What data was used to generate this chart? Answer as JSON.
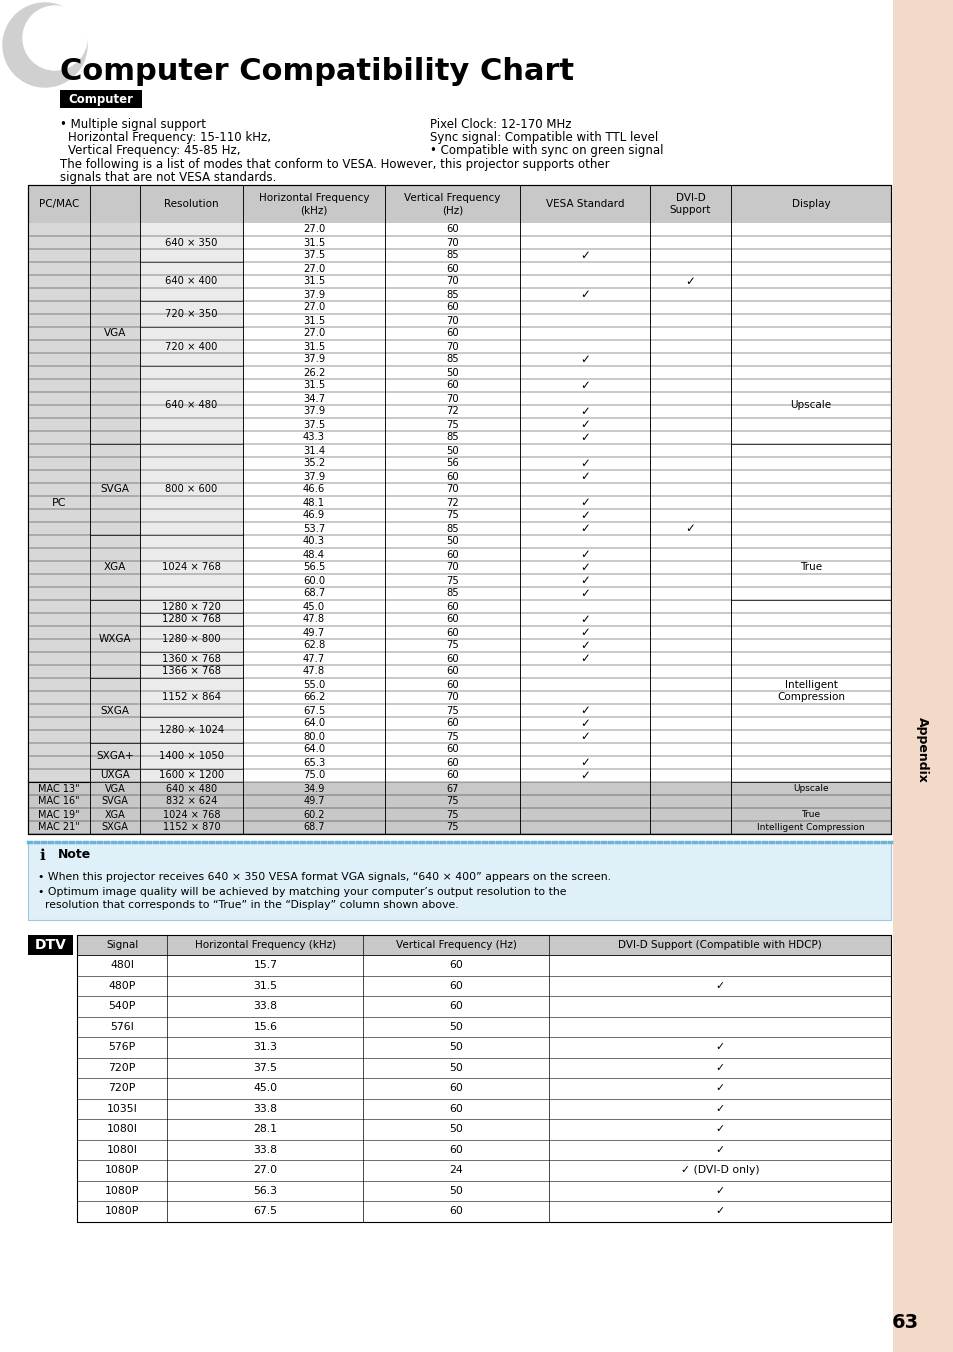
{
  "title": "Computer Compatibility Chart",
  "computer_label": "Computer",
  "bg_color": "#ffffff",
  "sidebar_color": "#f2d9c8",
  "table_header_bg": "#c8c8c8",
  "gray_cell": "#c8c8c8",
  "note_bg": "#dff0f8",
  "note_border": "#a0c8e0",
  "pc_rows": [
    [
      "640 × 350",
      "27.0",
      "60",
      "",
      ""
    ],
    [
      "640 × 350",
      "31.5",
      "70",
      "",
      ""
    ],
    [
      "640 × 350",
      "37.5",
      "85",
      "✓",
      ""
    ],
    [
      "640 × 400",
      "27.0",
      "60",
      "",
      ""
    ],
    [
      "640 × 400",
      "31.5",
      "70",
      "",
      "✓"
    ],
    [
      "640 × 400",
      "37.9",
      "85",
      "✓",
      ""
    ],
    [
      "720 × 350",
      "27.0",
      "60",
      "",
      ""
    ],
    [
      "720 × 350",
      "31.5",
      "70",
      "",
      ""
    ],
    [
      "720 × 400",
      "27.0",
      "60",
      "",
      ""
    ],
    [
      "720 × 400",
      "31.5",
      "70",
      "",
      ""
    ],
    [
      "720 × 400",
      "37.9",
      "85",
      "✓",
      ""
    ],
    [
      "640 × 480",
      "26.2",
      "50",
      "",
      ""
    ],
    [
      "640 × 480",
      "31.5",
      "60",
      "✓",
      ""
    ],
    [
      "640 × 480",
      "34.7",
      "70",
      "",
      ""
    ],
    [
      "640 × 480",
      "37.9",
      "72",
      "✓",
      ""
    ],
    [
      "640 × 480",
      "37.5",
      "75",
      "✓",
      ""
    ],
    [
      "640 × 480",
      "43.3",
      "85",
      "✓",
      ""
    ],
    [
      "800 × 600",
      "31.4",
      "50",
      "",
      ""
    ],
    [
      "800 × 600",
      "35.2",
      "56",
      "✓",
      ""
    ],
    [
      "800 × 600",
      "37.9",
      "60",
      "✓",
      ""
    ],
    [
      "800 × 600",
      "46.6",
      "70",
      "",
      ""
    ],
    [
      "800 × 600",
      "48.1",
      "72",
      "✓",
      ""
    ],
    [
      "800 × 600",
      "46.9",
      "75",
      "✓",
      ""
    ],
    [
      "800 × 600",
      "53.7",
      "85",
      "✓",
      "✓"
    ],
    [
      "1024 × 768",
      "40.3",
      "50",
      "",
      ""
    ],
    [
      "1024 × 768",
      "48.4",
      "60",
      "✓",
      ""
    ],
    [
      "1024 × 768",
      "56.5",
      "70",
      "✓",
      ""
    ],
    [
      "1024 × 768",
      "60.0",
      "75",
      "✓",
      ""
    ],
    [
      "1024 × 768",
      "68.7",
      "85",
      "✓",
      ""
    ],
    [
      "1280 × 720",
      "45.0",
      "60",
      "",
      ""
    ],
    [
      "1280 × 768",
      "47.8",
      "60",
      "✓",
      ""
    ],
    [
      "1280 × 800",
      "49.7",
      "60",
      "✓",
      ""
    ],
    [
      "1280 × 800",
      "62.8",
      "75",
      "✓",
      ""
    ],
    [
      "1360 × 768",
      "47.7",
      "60",
      "✓",
      ""
    ],
    [
      "1366 × 768",
      "47.8",
      "60",
      "",
      ""
    ],
    [
      "1152 × 864",
      "55.0",
      "60",
      "",
      ""
    ],
    [
      "1152 × 864",
      "66.2",
      "70",
      "",
      ""
    ],
    [
      "1152 × 864",
      "67.5",
      "75",
      "✓",
      ""
    ],
    [
      "1280 × 1024",
      "64.0",
      "60",
      "✓",
      ""
    ],
    [
      "1280 × 1024",
      "80.0",
      "75",
      "✓",
      ""
    ],
    [
      "1400 × 1050",
      "64.0",
      "60",
      "",
      ""
    ],
    [
      "1400 × 1050",
      "65.3",
      "60",
      "✓",
      ""
    ],
    [
      "1600 × 1200",
      "75.0",
      "60",
      "✓",
      ""
    ]
  ],
  "mac_rows": [
    [
      "MAC 13\"",
      "VGA",
      "640 × 480",
      "34.9",
      "67",
      "",
      ""
    ],
    [
      "MAC 16\"",
      "SVGA",
      "832 × 624",
      "49.7",
      "75",
      "",
      ""
    ],
    [
      "MAC 19\"",
      "XGA",
      "1024 × 768",
      "60.2",
      "75",
      "",
      ""
    ],
    [
      "MAC 21\"",
      "SXGA",
      "1152 × 870",
      "68.7",
      "75",
      "",
      ""
    ]
  ],
  "dtv_rows": [
    [
      "480I",
      "15.7",
      "60",
      ""
    ],
    [
      "480P",
      "31.5",
      "60",
      "✓"
    ],
    [
      "540P",
      "33.8",
      "60",
      ""
    ],
    [
      "576I",
      "15.6",
      "50",
      ""
    ],
    [
      "576P",
      "31.3",
      "50",
      "✓"
    ],
    [
      "720P",
      "37.5",
      "50",
      "✓"
    ],
    [
      "720P",
      "45.0",
      "60",
      "✓"
    ],
    [
      "1035I",
      "33.8",
      "60",
      "✓"
    ],
    [
      "1080I",
      "28.1",
      "50",
      "✓"
    ],
    [
      "1080I",
      "33.8",
      "60",
      "✓"
    ],
    [
      "1080P",
      "27.0",
      "24",
      "✓ (DVI-D only)"
    ],
    [
      "1080P",
      "56.3",
      "50",
      "✓"
    ],
    [
      "1080P",
      "67.5",
      "60",
      "✓"
    ]
  ],
  "vga_group": {
    "label": "VGA",
    "start": 0,
    "end": 17
  },
  "svga_group": {
    "label": "SVGA",
    "start": 17,
    "end": 24
  },
  "xga_group": {
    "label": "XGA",
    "start": 24,
    "end": 29
  },
  "wxga_group": {
    "label": "WXGA",
    "start": 29,
    "end": 35
  },
  "sxga_group": {
    "label": "SXGA",
    "start": 35,
    "end": 40
  },
  "sxgap_group": {
    "label": "SXGA+",
    "start": 40,
    "end": 42
  },
  "uxga_group": {
    "label": "UXGA",
    "start": 42,
    "end": 43
  },
  "res_groups": [
    {
      "label": "640 × 350",
      "start": 0,
      "end": 3
    },
    {
      "label": "640 × 400",
      "start": 3,
      "end": 6
    },
    {
      "label": "720 × 350",
      "start": 6,
      "end": 8
    },
    {
      "label": "720 × 400",
      "start": 8,
      "end": 11
    },
    {
      "label": "640 × 480",
      "start": 11,
      "end": 17
    },
    {
      "label": "800 × 600",
      "start": 17,
      "end": 24
    },
    {
      "label": "1024 × 768",
      "start": 24,
      "end": 29
    },
    {
      "label": "1280 × 720",
      "start": 29,
      "end": 30
    },
    {
      "label": "1280 × 768",
      "start": 30,
      "end": 31
    },
    {
      "label": "1280 × 800",
      "start": 31,
      "end": 33
    },
    {
      "label": "1360 × 768",
      "start": 33,
      "end": 34
    },
    {
      "label": "1366 × 768",
      "start": 34,
      "end": 35
    },
    {
      "label": "1152 × 864",
      "start": 35,
      "end": 38
    },
    {
      "label": "1280 × 1024",
      "start": 38,
      "end": 40
    },
    {
      "label": "1400 × 1050",
      "start": 40,
      "end": 42
    },
    {
      "label": "1600 × 1200",
      "start": 42,
      "end": 43
    }
  ],
  "display_groups": [
    {
      "label": "Upscale",
      "start": 11,
      "end": 17
    },
    {
      "label": "True",
      "start": 24,
      "end": 29
    },
    {
      "label": "Intelligent\nCompression",
      "start": 29,
      "end": 43
    }
  ],
  "mac_displays": [
    "Upscale",
    "",
    "True",
    "Intelligent Compression"
  ]
}
